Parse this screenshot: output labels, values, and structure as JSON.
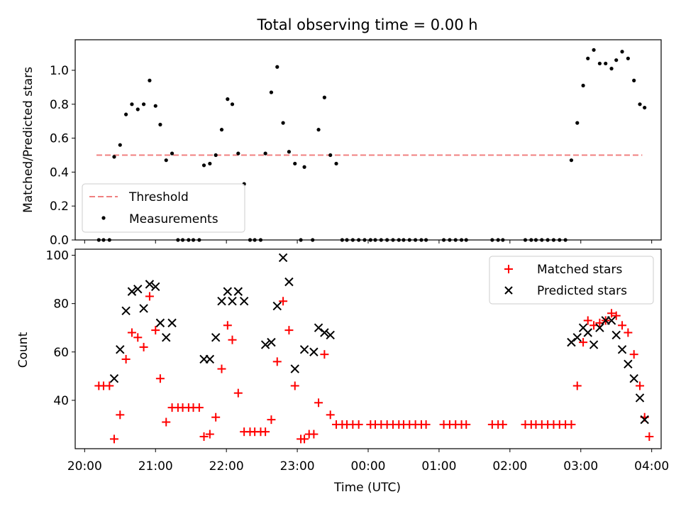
{
  "chart_data": [
    {
      "type": "scatter",
      "title": "Total observing time = 0.00 h",
      "ylabel": "Matched/Predicted stars",
      "xlabel": "",
      "xlim": [
        "19:52",
        "04:08"
      ],
      "ylim": [
        0,
        1.18
      ],
      "yticks": [
        "0.0",
        "0.2",
        "0.4",
        "0.6",
        "0.8",
        "1.0"
      ],
      "yticks_values": [
        0,
        0.2,
        0.4,
        0.6,
        0.8,
        1.0
      ],
      "legend": "lower-left",
      "threshold": {
        "name": "Threshold",
        "y": 0.5,
        "x_start": "20:10",
        "x_end": "03:52",
        "color": "#f08080"
      },
      "series": [
        {
          "name": "Measurements",
          "color": "#000000",
          "points": [
            [
              "20:12",
              0
            ],
            [
              "20:16",
              0
            ],
            [
              "20:21",
              0
            ],
            [
              "20:25",
              0.49
            ],
            [
              "20:30",
              0.56
            ],
            [
              "20:35",
              0.74
            ],
            [
              "20:40",
              0.8
            ],
            [
              "20:45",
              0.77
            ],
            [
              "20:50",
              0.8
            ],
            [
              "20:55",
              0.94
            ],
            [
              "21:00",
              0.79
            ],
            [
              "21:04",
              0.68
            ],
            [
              "21:09",
              0.47
            ],
            [
              "21:14",
              0.51
            ],
            [
              "21:19",
              0
            ],
            [
              "21:23",
              0
            ],
            [
              "21:28",
              0
            ],
            [
              "21:32",
              0
            ],
            [
              "21:37",
              0
            ],
            [
              "21:41",
              0.44
            ],
            [
              "21:46",
              0.45
            ],
            [
              "21:51",
              0.5
            ],
            [
              "21:56",
              0.65
            ],
            [
              "22:01",
              0.83
            ],
            [
              "22:05",
              0.8
            ],
            [
              "22:10",
              0.51
            ],
            [
              "22:15",
              0.33
            ],
            [
              "22:20",
              0
            ],
            [
              "22:24",
              0
            ],
            [
              "22:29",
              0
            ],
            [
              "22:33",
              0.51
            ],
            [
              "22:38",
              0.87
            ],
            [
              "22:43",
              1.02
            ],
            [
              "22:48",
              0.69
            ],
            [
              "22:53",
              0.52
            ],
            [
              "22:58",
              0.45
            ],
            [
              "23:03",
              0
            ],
            [
              "23:06",
              0.43
            ],
            [
              "23:13",
              0
            ],
            [
              "23:18",
              0.65
            ],
            [
              "23:23",
              0.84
            ],
            [
              "23:28",
              0.5
            ],
            [
              "23:33",
              0.45
            ],
            [
              "23:38",
              0
            ],
            [
              "23:42",
              0
            ],
            [
              "23:47",
              0
            ],
            [
              "23:52",
              0
            ],
            [
              "23:57",
              0
            ],
            [
              "00:02",
              0
            ],
            [
              "00:06",
              0
            ],
            [
              "00:11",
              0
            ],
            [
              "00:16",
              0
            ],
            [
              "00:21",
              0
            ],
            [
              "00:26",
              0
            ],
            [
              "00:30",
              0
            ],
            [
              "00:35",
              0
            ],
            [
              "00:40",
              0
            ],
            [
              "00:45",
              0
            ],
            [
              "00:49",
              0
            ],
            [
              "01:04",
              0
            ],
            [
              "01:09",
              0
            ],
            [
              "01:14",
              0
            ],
            [
              "01:19",
              0
            ],
            [
              "01:23",
              0
            ],
            [
              "01:45",
              0
            ],
            [
              "01:50",
              0
            ],
            [
              "01:54",
              0
            ],
            [
              "02:13",
              0
            ],
            [
              "02:18",
              0
            ],
            [
              "02:22",
              0
            ],
            [
              "02:27",
              0
            ],
            [
              "02:32",
              0
            ],
            [
              "02:37",
              0
            ],
            [
              "02:42",
              0
            ],
            [
              "02:47",
              0
            ],
            [
              "02:52",
              0.47
            ],
            [
              "02:57",
              0.69
            ],
            [
              "03:02",
              0.91
            ],
            [
              "03:06",
              1.07
            ],
            [
              "03:11",
              1.12
            ],
            [
              "03:16",
              1.04
            ],
            [
              "03:21",
              1.04
            ],
            [
              "03:26",
              1.01
            ],
            [
              "03:30",
              1.06
            ],
            [
              "03:35",
              1.11
            ],
            [
              "03:40",
              1.07
            ],
            [
              "03:45",
              0.94
            ],
            [
              "03:50",
              0.8
            ],
            [
              "03:54",
              0.78
            ]
          ]
        }
      ]
    },
    {
      "type": "scatter",
      "title": "",
      "xlabel": "Time (UTC)",
      "ylabel": "Count",
      "xlim": [
        "19:52",
        "04:08"
      ],
      "ylim": [
        20,
        102.5
      ],
      "yticks": [
        "40",
        "60",
        "80",
        "100"
      ],
      "yticks_values": [
        40,
        60,
        80,
        100
      ],
      "xticks": [
        "20:00",
        "21:00",
        "22:00",
        "23:00",
        "00:00",
        "01:00",
        "02:00",
        "03:00",
        "04:00"
      ],
      "legend": "top-right",
      "series": [
        {
          "name": "Matched stars",
          "marker": "+",
          "color": "#ff0000",
          "points": [
            [
              "20:12",
              46
            ],
            [
              "20:16",
              46
            ],
            [
              "20:21",
              46
            ],
            [
              "20:25",
              24
            ],
            [
              "20:30",
              34
            ],
            [
              "20:35",
              57
            ],
            [
              "20:40",
              68
            ],
            [
              "20:45",
              66
            ],
            [
              "20:50",
              62
            ],
            [
              "20:55",
              83
            ],
            [
              "21:00",
              69
            ],
            [
              "21:04",
              49
            ],
            [
              "21:09",
              31
            ],
            [
              "21:14",
              37
            ],
            [
              "21:19",
              37
            ],
            [
              "21:23",
              37
            ],
            [
              "21:28",
              37
            ],
            [
              "21:32",
              37
            ],
            [
              "21:37",
              37
            ],
            [
              "21:41",
              25
            ],
            [
              "21:46",
              26
            ],
            [
              "21:51",
              33
            ],
            [
              "21:56",
              53
            ],
            [
              "22:01",
              71
            ],
            [
              "22:05",
              65
            ],
            [
              "22:10",
              43
            ],
            [
              "22:15",
              27
            ],
            [
              "22:20",
              27
            ],
            [
              "22:24",
              27
            ],
            [
              "22:29",
              27
            ],
            [
              "22:33",
              27
            ],
            [
              "22:38",
              32
            ],
            [
              "22:43",
              56
            ],
            [
              "22:48",
              81
            ],
            [
              "22:53",
              69
            ],
            [
              "22:58",
              46
            ],
            [
              "23:03",
              24
            ],
            [
              "23:06",
              24
            ],
            [
              "23:10",
              26
            ],
            [
              "23:14",
              26
            ],
            [
              "23:18",
              39
            ],
            [
              "23:23",
              59
            ],
            [
              "23:28",
              34
            ],
            [
              "23:33",
              30
            ],
            [
              "23:38",
              30
            ],
            [
              "23:42",
              30
            ],
            [
              "23:47",
              30
            ],
            [
              "23:52",
              30
            ],
            [
              "00:02",
              30
            ],
            [
              "00:06",
              30
            ],
            [
              "00:11",
              30
            ],
            [
              "00:16",
              30
            ],
            [
              "00:21",
              30
            ],
            [
              "00:26",
              30
            ],
            [
              "00:30",
              30
            ],
            [
              "00:35",
              30
            ],
            [
              "00:40",
              30
            ],
            [
              "00:45",
              30
            ],
            [
              "00:49",
              30
            ],
            [
              "01:04",
              30
            ],
            [
              "01:09",
              30
            ],
            [
              "01:14",
              30
            ],
            [
              "01:19",
              30
            ],
            [
              "01:23",
              30
            ],
            [
              "01:45",
              30
            ],
            [
              "01:50",
              30
            ],
            [
              "01:54",
              30
            ],
            [
              "02:13",
              30
            ],
            [
              "02:18",
              30
            ],
            [
              "02:22",
              30
            ],
            [
              "02:27",
              30
            ],
            [
              "02:32",
              30
            ],
            [
              "02:37",
              30
            ],
            [
              "02:42",
              30
            ],
            [
              "02:47",
              30
            ],
            [
              "02:52",
              30
            ],
            [
              "02:57",
              46
            ],
            [
              "03:02",
              64
            ],
            [
              "03:06",
              73
            ],
            [
              "03:11",
              71
            ],
            [
              "03:16",
              72
            ],
            [
              "03:21",
              73
            ],
            [
              "03:26",
              76
            ],
            [
              "03:30",
              75
            ],
            [
              "03:35",
              71
            ],
            [
              "03:40",
              68
            ],
            [
              "03:45",
              59
            ],
            [
              "03:50",
              46
            ],
            [
              "03:54",
              33
            ],
            [
              "03:58",
              25
            ]
          ]
        },
        {
          "name": "Predicted stars",
          "marker": "x",
          "color": "#000000",
          "points": [
            [
              "20:25",
              49
            ],
            [
              "20:30",
              61
            ],
            [
              "20:35",
              77
            ],
            [
              "20:40",
              85
            ],
            [
              "20:45",
              86
            ],
            [
              "20:50",
              78
            ],
            [
              "20:55",
              88
            ],
            [
              "21:00",
              87
            ],
            [
              "21:04",
              72
            ],
            [
              "21:09",
              66
            ],
            [
              "21:14",
              72
            ],
            [
              "21:41",
              57
            ],
            [
              "21:46",
              57
            ],
            [
              "21:51",
              66
            ],
            [
              "21:56",
              81
            ],
            [
              "22:01",
              85
            ],
            [
              "22:05",
              81
            ],
            [
              "22:10",
              85
            ],
            [
              "22:15",
              81
            ],
            [
              "22:33",
              63
            ],
            [
              "22:38",
              64
            ],
            [
              "22:43",
              79
            ],
            [
              "22:48",
              99
            ],
            [
              "22:53",
              89
            ],
            [
              "22:58",
              53
            ],
            [
              "23:06",
              61
            ],
            [
              "23:14",
              60
            ],
            [
              "23:18",
              70
            ],
            [
              "23:23",
              68
            ],
            [
              "23:28",
              67
            ],
            [
              "02:52",
              64
            ],
            [
              "02:57",
              66
            ],
            [
              "03:02",
              70
            ],
            [
              "03:06",
              68
            ],
            [
              "03:11",
              63
            ],
            [
              "03:16",
              70
            ],
            [
              "03:21",
              73
            ],
            [
              "03:26",
              73
            ],
            [
              "03:30",
              67
            ],
            [
              "03:35",
              61
            ],
            [
              "03:40",
              55
            ],
            [
              "03:45",
              49
            ],
            [
              "03:50",
              41
            ],
            [
              "03:54",
              32
            ]
          ]
        }
      ]
    }
  ]
}
